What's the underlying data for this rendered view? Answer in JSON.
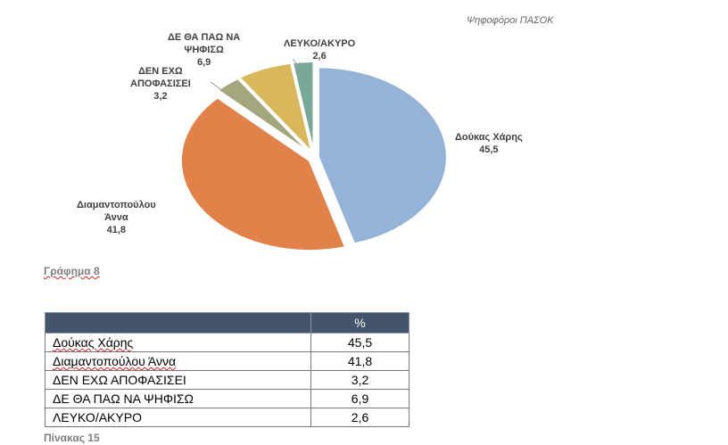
{
  "chart_data": {
    "type": "pie",
    "title": "Ψηφοφόροι ΠΑΣΟΚ",
    "slices": [
      {
        "label": "Δούκας Χάρης",
        "value": 45.5,
        "value_label": "45,5",
        "color": "#95b3d7"
      },
      {
        "label": "Διαμαντοπούλου Άννα",
        "value": 41.8,
        "value_label": "41,8",
        "color": "#e0824a"
      },
      {
        "label": "ΔΕΝ ΕΧΩ ΑΠΟΦΑΣΙΣΕΙ",
        "value": 3.2,
        "value_label": "3,2",
        "color": "#a5a67e"
      },
      {
        "label": "ΔΕ ΘΑ ΠΑΩ ΝΑ ΨΗΦΙΣΩ",
        "value": 6.9,
        "value_label": "6,9",
        "color": "#d9b75c"
      },
      {
        "label": "ΛΕΥΚΟ/ΑΚΥΡΟ",
        "value": 2.6,
        "value_label": "2,6",
        "color": "#79a89a"
      }
    ]
  },
  "chart_caption": "Γράφημα 8",
  "table": {
    "header": [
      "",
      "%"
    ],
    "rows": [
      [
        "Δούκας Χάρης",
        "45,5"
      ],
      [
        "Διαμαντοπούλου Άννα",
        "41,8"
      ],
      [
        "ΔΕΝ ΕΧΩ ΑΠΟΦΑΣΙΣΕΙ",
        "3,2"
      ],
      [
        "ΔΕ ΘΑ ΠΑΩ ΝΑ ΨΗΦΙΣΩ",
        "6,9"
      ],
      [
        "ΛΕΥΚΟ/ΑΚΥΡΟ",
        "2,6"
      ]
    ]
  },
  "table_caption": "Πίνακας 15"
}
